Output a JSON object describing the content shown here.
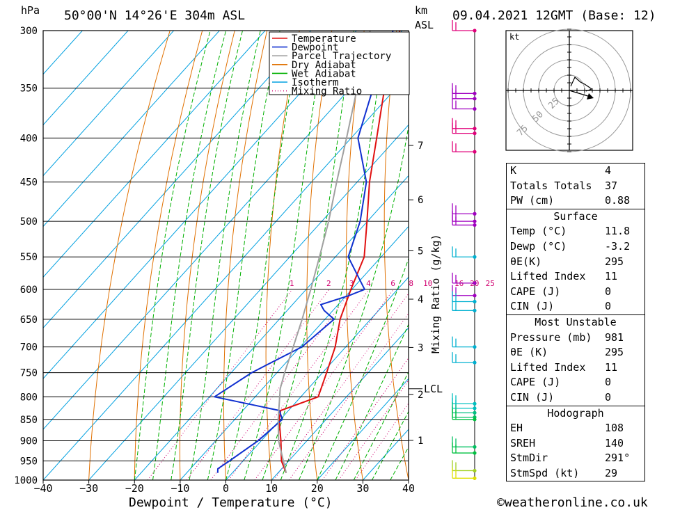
{
  "header": {
    "p_unit": "hPa",
    "location": "50°00'N  14°26'E  304m  ASL",
    "alt_unit_1": "km",
    "alt_unit_2": "ASL",
    "datetime": "09.04.2021  12GMT  (Base: 12)"
  },
  "legend": [
    {
      "label": "Temperature",
      "color": "#e01010",
      "style": "solid"
    },
    {
      "label": "Dewpoint",
      "color": "#1030d0",
      "style": "solid"
    },
    {
      "label": "Parcel Trajectory",
      "color": "#a0a0a0",
      "style": "solid"
    },
    {
      "label": "Dry Adiabat",
      "color": "#e07000",
      "style": "solid"
    },
    {
      "label": "Wet Adiabat",
      "color": "#00b000",
      "style": "solid"
    },
    {
      "label": "Isotherm",
      "color": "#00a0e0",
      "style": "solid"
    },
    {
      "label": "Mixing Ratio",
      "color": "#d00070",
      "style": "dotted"
    }
  ],
  "chart_data": {
    "type": "line",
    "title": "09.04.2021  12GMT  (Base: 12)",
    "xlabel": "Dewpoint / Temperature (°C)",
    "ylabel": "hPa",
    "y2label": "Mixing Ratio (g/kg)",
    "xlim": [
      -40,
      40
    ],
    "ylim": [
      1000,
      300
    ],
    "x_ticks": [
      "−40",
      "−30",
      "−20",
      "−10",
      "0",
      "10",
      "20",
      "30",
      "40"
    ],
    "p_levels": [
      300,
      350,
      400,
      450,
      500,
      550,
      600,
      650,
      700,
      750,
      800,
      850,
      900,
      950,
      1000
    ],
    "km_ticks": [
      {
        "label": "7",
        "p": 408
      },
      {
        "label": "6",
        "p": 472
      },
      {
        "label": "5",
        "p": 541
      },
      {
        "label": "4",
        "p": 616
      },
      {
        "label": "3",
        "p": 701
      },
      {
        "label": "2",
        "p": 795
      },
      {
        "label": "1",
        "p": 899
      }
    ],
    "lcl_label": "LCL",
    "lcl_p": 783,
    "mixing_ratio_labels": [
      "1",
      "2",
      "3",
      "4",
      "6",
      "8",
      "10",
      "16",
      "20",
      "25"
    ],
    "series": [
      {
        "name": "Temperature",
        "color": "#e01010",
        "points": [
          [
            981,
            11.8
          ],
          [
            950,
            8.4
          ],
          [
            900,
            4.3
          ],
          [
            850,
            -0.3
          ],
          [
            830,
            -1.7
          ],
          [
            800,
            3.8
          ],
          [
            750,
            0.9
          ],
          [
            700,
            -2.3
          ],
          [
            650,
            -6.7
          ],
          [
            600,
            -10.2
          ],
          [
            550,
            -13.7
          ],
          [
            500,
            -20.1
          ],
          [
            450,
            -27.3
          ],
          [
            400,
            -34.4
          ],
          [
            350,
            -42.5
          ],
          [
            300,
            -50.5
          ]
        ]
      },
      {
        "name": "Dewpoint",
        "color": "#1030d0",
        "points": [
          [
            981,
            -3.2
          ],
          [
            970,
            -4.0
          ],
          [
            950,
            -3.0
          ],
          [
            900,
            -0.7
          ],
          [
            850,
            0.4
          ],
          [
            830,
            -2.0
          ],
          [
            800,
            -18.9
          ],
          [
            750,
            -15.5
          ],
          [
            700,
            -9.6
          ],
          [
            650,
            -8.0
          ],
          [
            635,
            -11.9
          ],
          [
            625,
            -13.8
          ],
          [
            610,
            -9.4
          ],
          [
            600,
            -7.2
          ],
          [
            550,
            -17.2
          ],
          [
            500,
            -21.6
          ],
          [
            450,
            -28.0
          ],
          [
            400,
            -38.5
          ],
          [
            350,
            -45.0
          ],
          [
            300,
            -52.0
          ]
        ]
      },
      {
        "name": "Parcel Trajectory",
        "color": "#a0a0a0",
        "points": [
          [
            981,
            11.8
          ],
          [
            900,
            3.8
          ],
          [
            850,
            -0.5
          ],
          [
            783,
            -6.1
          ],
          [
            750,
            -8.3
          ],
          [
            700,
            -11.5
          ],
          [
            650,
            -15.0
          ],
          [
            600,
            -19.0
          ],
          [
            550,
            -23.5
          ],
          [
            500,
            -28.5
          ],
          [
            450,
            -34.5
          ],
          [
            400,
            -41.0
          ],
          [
            350,
            -48.5
          ],
          [
            300,
            -57.0
          ]
        ]
      }
    ]
  },
  "wind_barbs": [
    {
      "p": 300,
      "color": "#e0007a"
    },
    {
      "p": 355,
      "color": "#a000c0"
    },
    {
      "p": 360,
      "color": "#a000c0"
    },
    {
      "p": 370,
      "color": "#a000c0"
    },
    {
      "p": 390,
      "color": "#e0007a"
    },
    {
      "p": 395,
      "color": "#e0007a"
    },
    {
      "p": 415,
      "color": "#e0007a"
    },
    {
      "p": 490,
      "color": "#a000c0"
    },
    {
      "p": 500,
      "color": "#a000c0"
    },
    {
      "p": 505,
      "color": "#a000c0"
    },
    {
      "p": 550,
      "color": "#00b0d0"
    },
    {
      "p": 590,
      "color": "#a000c0"
    },
    {
      "p": 610,
      "color": "#a000c0"
    },
    {
      "p": 620,
      "color": "#00b0d0"
    },
    {
      "p": 635,
      "color": "#00b0d0"
    },
    {
      "p": 700,
      "color": "#00b0d0"
    },
    {
      "p": 730,
      "color": "#00b0d0"
    },
    {
      "p": 815,
      "color": "#00c0c0"
    },
    {
      "p": 825,
      "color": "#00c0c0"
    },
    {
      "p": 835,
      "color": "#00c080"
    },
    {
      "p": 845,
      "color": "#00c060"
    },
    {
      "p": 850,
      "color": "#00c040"
    },
    {
      "p": 915,
      "color": "#00c060"
    },
    {
      "p": 930,
      "color": "#00c040"
    },
    {
      "p": 975,
      "color": "#a0d020"
    },
    {
      "p": 995,
      "color": "#e0e000"
    }
  ],
  "hodograph": {
    "unit": "kt",
    "ring_labels": [
      "25",
      "50",
      "75"
    ]
  },
  "indices": [
    [
      {
        "k": "K",
        "v": "4"
      },
      {
        "k": "Totals Totals",
        "v": "37"
      },
      {
        "k": "PW (cm)",
        "v": "0.88"
      }
    ],
    {
      "title": "Surface",
      "rows": [
        {
          "k": "Temp (°C)",
          "v": "11.8"
        },
        {
          "k": "Dewp (°C)",
          "v": "-3.2"
        },
        {
          "k": "θE(K)",
          "v": "295"
        },
        {
          "k": "Lifted Index",
          "v": "11"
        },
        {
          "k": "CAPE (J)",
          "v": "0"
        },
        {
          "k": "CIN (J)",
          "v": "0"
        }
      ]
    },
    {
      "title": "Most Unstable",
      "rows": [
        {
          "k": "Pressure (mb)",
          "v": "981"
        },
        {
          "k": "θE (K)",
          "v": "295"
        },
        {
          "k": "Lifted Index",
          "v": "11"
        },
        {
          "k": "CAPE (J)",
          "v": "0"
        },
        {
          "k": "CIN (J)",
          "v": "0"
        }
      ]
    },
    {
      "title": "Hodograph",
      "rows": [
        {
          "k": "EH",
          "v": "108"
        },
        {
          "k": "SREH",
          "v": "140"
        },
        {
          "k": "StmDir",
          "v": "291°"
        },
        {
          "k": "StmSpd (kt)",
          "v": "29"
        }
      ]
    }
  ],
  "footer": {
    "copyright": "©weatheronline.co.uk"
  }
}
